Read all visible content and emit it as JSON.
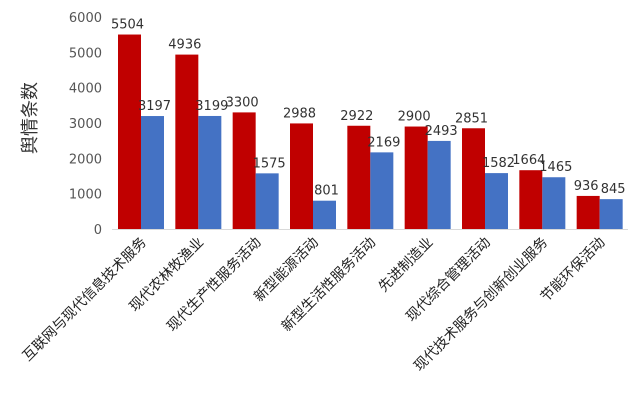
{
  "chart_data": {
    "type": "bar",
    "title": "",
    "xlabel": "",
    "ylabel": "舆情条数",
    "ylim": [
      0,
      6000
    ],
    "yticks": [
      "0",
      "1000",
      "2000",
      "3000",
      "4000",
      "5000",
      "6000"
    ],
    "grid": false,
    "legend": "none",
    "categories": [
      "互联网与现代信息技术服务",
      "现代农林牧渔业",
      "现代生产性服务活动",
      "新型能源活动",
      "新型生活性服务活动",
      "先进制造业",
      "现代综合管理活动",
      "现代技术服务与创新创业服务",
      "节能环保活动"
    ],
    "series": [
      {
        "color": "#c00000",
        "values": [
          5504,
          4936,
          3300,
          2988,
          2922,
          2900,
          2851,
          1664,
          936
        ],
        "labels": [
          "5504",
          "4936",
          "3300",
          "2988",
          "2922",
          "2900",
          "2851",
          "1664",
          "936"
        ]
      },
      {
        "color": "#4472c4",
        "values": [
          3197,
          3199,
          1575,
          801,
          2169,
          2493,
          1582,
          1465,
          845
        ],
        "labels": [
          "3197",
          "3199",
          "1575",
          "801",
          "2169",
          "2493",
          "1582",
          "1465",
          "845"
        ]
      }
    ]
  }
}
